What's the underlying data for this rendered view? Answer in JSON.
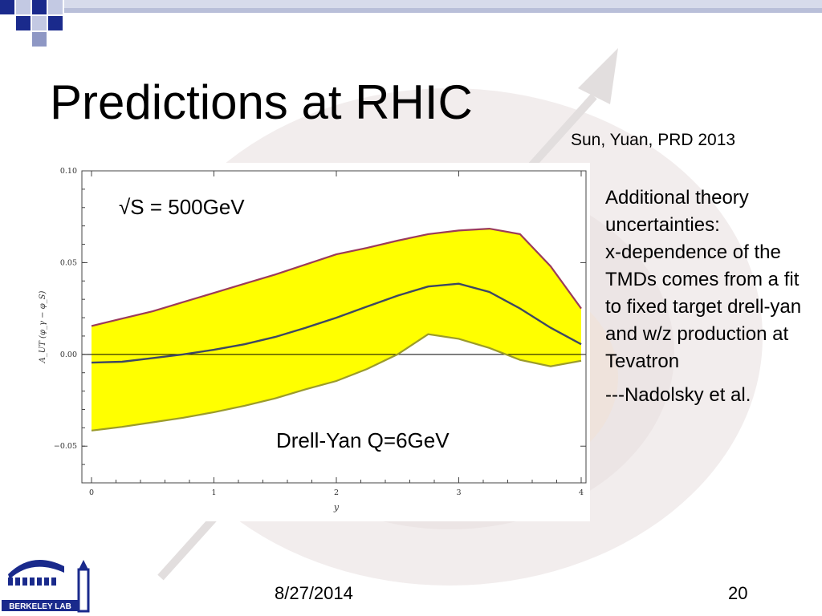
{
  "slide": {
    "title": "Predictions at RHIC",
    "citation": "Sun, Yuan, PRD 2013",
    "notes": [
      "Additional theory uncertainties:",
      "x-dependence of the TMDs comes from a fit to fixed target drell-yan and w/z production at Tevatron"
    ],
    "credit": "---Nadolsky et al.",
    "footer": {
      "date": "8/27/2014",
      "page": "20"
    },
    "logo_text": "BERKELEY LAB"
  },
  "colors": {
    "band_fill": "#ffff00",
    "upper_edge": "#9b3b5a",
    "central_line": "#3d4763",
    "lower_edge": "#9b9b2a",
    "zero_line": "#000000",
    "accent_blue": "#1a2a8c"
  },
  "chart_data": {
    "type": "area",
    "xlabel": "y",
    "ylabel": "A_UT (φ_γ − φ_S)",
    "xlim": [
      0,
      4
    ],
    "ylim": [
      -0.07,
      0.1
    ],
    "x_ticks": [
      "0",
      "1",
      "2",
      "3",
      "4"
    ],
    "y_ticks": [
      "0.10",
      "0.05",
      "0.00",
      "−0.05"
    ],
    "grid": false,
    "annotations": [
      "√S = 500GeV",
      "Drell-Yan Q=6GeV"
    ],
    "x": [
      0,
      0.25,
      0.5,
      0.75,
      1,
      1.25,
      1.5,
      1.75,
      2,
      2.25,
      2.5,
      2.75,
      3,
      3.25,
      3.5,
      3.75,
      4
    ],
    "series": [
      {
        "values": [
          0.0155,
          0.0195,
          0.0235,
          0.0285,
          0.0335,
          0.0385,
          0.0435,
          0.049,
          0.0545,
          0.058,
          0.062,
          0.0655,
          0.0675,
          0.0685,
          0.0655,
          0.048,
          0.025
        ]
      },
      {
        "values": [
          -0.0045,
          -0.004,
          -0.002,
          0.0,
          0.0025,
          0.0055,
          0.0095,
          0.0145,
          0.02,
          0.026,
          0.032,
          0.037,
          0.0385,
          0.034,
          0.025,
          0.0145,
          0.0055
        ]
      },
      {
        "values": [
          -0.0415,
          -0.0395,
          -0.037,
          -0.0345,
          -0.0315,
          -0.028,
          -0.024,
          -0.019,
          -0.0145,
          -0.008,
          0.0,
          0.011,
          0.0085,
          0.0035,
          -0.003,
          -0.0065,
          -0.0035
        ]
      }
    ]
  }
}
